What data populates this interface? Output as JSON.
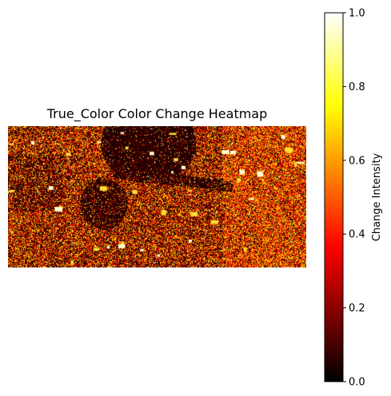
{
  "chart_data": {
    "type": "heatmap",
    "title": "True_Color Color Change Heatmap",
    "colormap": "hot",
    "colormap_stops": [
      "#000000",
      "#ff0000",
      "#ffff00",
      "#ffffff"
    ],
    "colorbar": {
      "label": "Change Intensity",
      "range": [
        0.0,
        1.0
      ],
      "ticks": [
        0.0,
        0.2,
        0.4,
        0.6,
        0.8,
        1.0
      ],
      "tick_labels": [
        "0.0",
        "0.2",
        "0.4",
        "0.6",
        "0.8",
        "1.0"
      ]
    },
    "axes_visible": false,
    "grid": false
  }
}
